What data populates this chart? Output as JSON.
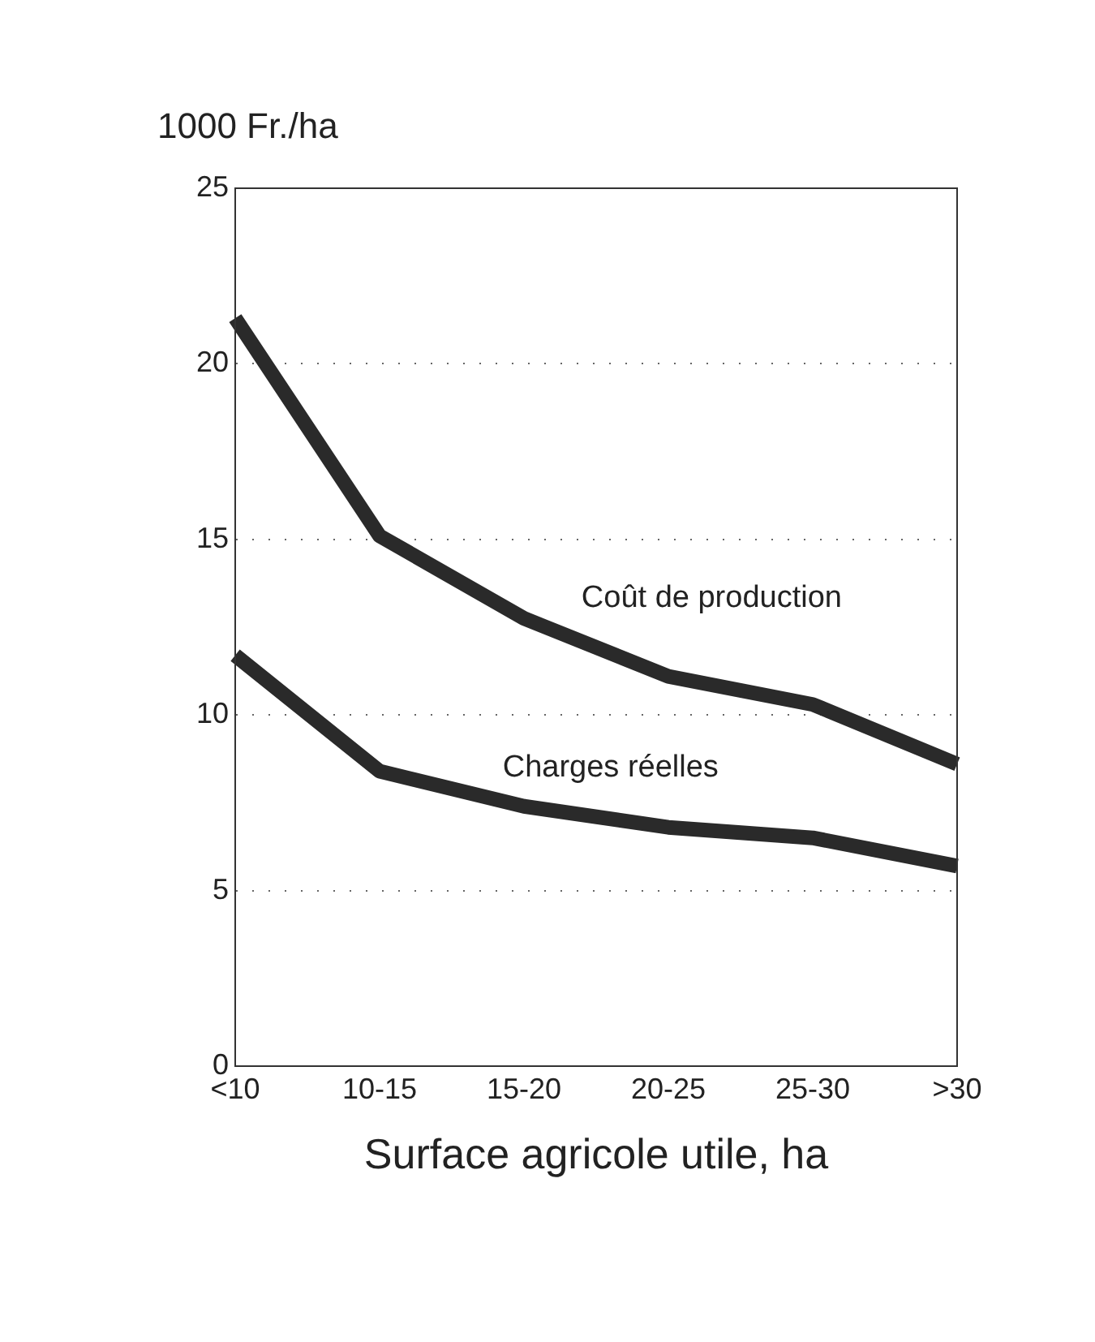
{
  "chart_data": {
    "type": "line",
    "ylabel": "1000 Fr./ha",
    "xlabel": "Surface agricole utile, ha",
    "categories": [
      "<10",
      "10-15",
      "15-20",
      "20-25",
      "25-30",
      ">30"
    ],
    "series": [
      {
        "name": "Coût de production",
        "color": "#2a2a2a",
        "values": [
          21.3,
          15.1,
          12.75,
          11.1,
          10.3,
          8.6
        ]
      },
      {
        "name": "Charges réelles",
        "color": "#2a2a2a",
        "values": [
          11.7,
          8.4,
          7.4,
          6.8,
          6.5,
          5.7
        ]
      }
    ],
    "ylim": [
      0,
      25
    ],
    "yticks": [
      0,
      5,
      10,
      15,
      20,
      25
    ],
    "grid": "y",
    "legend": false,
    "marker": "none",
    "line_style": "solid"
  }
}
